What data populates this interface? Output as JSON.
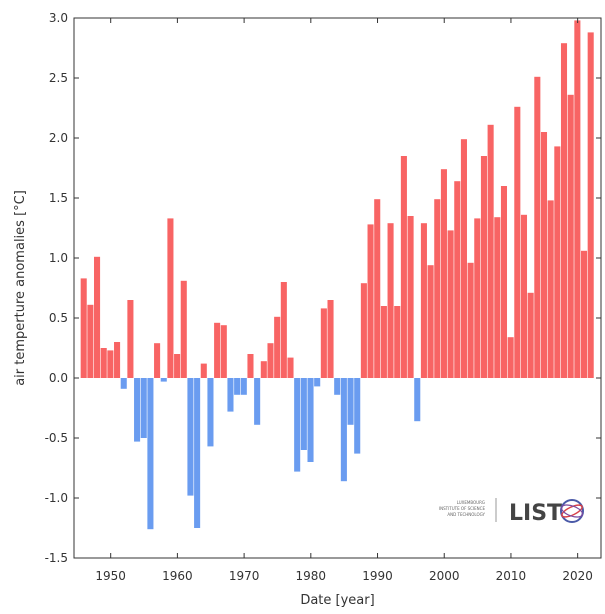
{
  "chart_data": {
    "type": "bar",
    "title": "",
    "xlabel": "Date [year]",
    "ylabel": "air temperture anomalies [°C]",
    "xlim": [
      1944.5,
      2023.5
    ],
    "ylim": [
      -1.5,
      3.0
    ],
    "x_ticks": [
      "1950",
      "1960",
      "1970",
      "1980",
      "1990",
      "2000",
      "2010",
      "2020"
    ],
    "y_ticks": [
      "3.0",
      "2.5",
      "2.0",
      "1.5",
      "1.0",
      "0.5",
      "0.0",
      "-0.5",
      "-1.0",
      "-1.5"
    ],
    "grid": false,
    "colors": {
      "positive": "#f86464",
      "negative": "#6a9cf0"
    },
    "x": [
      1946,
      1947,
      1948,
      1949,
      1950,
      1951,
      1952,
      1953,
      1954,
      1955,
      1956,
      1957,
      1958,
      1959,
      1960,
      1961,
      1962,
      1963,
      1964,
      1965,
      1966,
      1967,
      1968,
      1969,
      1970,
      1971,
      1972,
      1973,
      1974,
      1975,
      1976,
      1977,
      1978,
      1979,
      1980,
      1981,
      1982,
      1983,
      1984,
      1985,
      1986,
      1987,
      1988,
      1989,
      1990,
      1991,
      1992,
      1993,
      1994,
      1995,
      1996,
      1997,
      1998,
      1999,
      2000,
      2001,
      2002,
      2003,
      2004,
      2005,
      2006,
      2007,
      2008,
      2009,
      2010,
      2011,
      2012,
      2013,
      2014,
      2015,
      2016,
      2017,
      2018,
      2019,
      2020,
      2021,
      2022
    ],
    "values": [
      0.83,
      0.61,
      1.01,
      0.25,
      0.23,
      0.3,
      -0.09,
      0.65,
      -0.53,
      -0.5,
      -1.26,
      0.29,
      -0.03,
      1.33,
      0.2,
      0.81,
      -0.98,
      -1.25,
      0.12,
      -0.57,
      0.46,
      0.44,
      -0.28,
      -0.14,
      -0.14,
      0.2,
      -0.39,
      0.14,
      0.29,
      0.51,
      0.8,
      0.17,
      -0.78,
      -0.6,
      -0.7,
      -0.07,
      0.58,
      0.65,
      -0.14,
      -0.86,
      -0.39,
      -0.63,
      0.79,
      1.28,
      1.49,
      0.6,
      1.29,
      0.6,
      1.85,
      1.35,
      -0.36,
      1.29,
      0.94,
      1.49,
      1.74,
      1.23,
      1.64,
      1.99,
      0.96,
      1.33,
      1.85,
      2.11,
      1.34,
      1.6,
      0.34,
      2.26,
      1.36,
      0.71,
      2.51,
      2.05,
      1.48,
      1.93,
      2.79,
      2.36,
      2.98,
      1.06,
      2.88
    ]
  },
  "logo": {
    "small_text": [
      "LUXEMBOURG",
      "INSTITUTE OF SCIENCE",
      "AND TECHNOLOGY"
    ],
    "brand": "LIST"
  }
}
